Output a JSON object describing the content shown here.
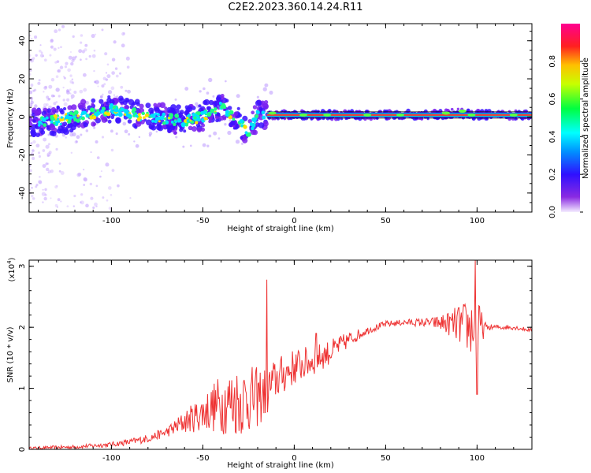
{
  "title": "C2E2.2023.360.14.24.R11",
  "chart_data": [
    {
      "type": "heatmap",
      "name": "spectrogram",
      "xlabel": "Height of straight line (km)",
      "ylabel": "Frequency (Hz)",
      "xlim": [
        -145,
        130
      ],
      "ylim": [
        -50,
        49
      ],
      "xticks": [
        "-100",
        "-50",
        "0",
        "50",
        "100"
      ],
      "yticks": [
        "-40",
        "-20",
        "0",
        "20",
        "40"
      ],
      "colorbar": {
        "label": "Normalized spectral amplitude",
        "ticks": [
          "0.0",
          "0.2",
          "0.4",
          "0.6",
          "0.8"
        ],
        "range": [
          0,
          1
        ],
        "colormap": "rainbow (white/purple → blue → cyan → green → yellow → red → magenta)"
      },
      "signal_track": {
        "description": "Frequency centroid of the signal versus height",
        "x": [
          -145,
          -130,
          -120,
          -110,
          -100,
          -90,
          -80,
          -70,
          -60,
          -50,
          -45,
          -40,
          -35,
          -30,
          -25,
          -20,
          -10,
          0,
          25,
          50,
          75,
          90,
          100,
          130
        ],
        "y": [
          -3,
          -2,
          0,
          2,
          4,
          2,
          0,
          -1,
          -2,
          0,
          3,
          5,
          2,
          -3,
          -8,
          1,
          1,
          1,
          1,
          1,
          1,
          2,
          1,
          1
        ]
      }
    },
    {
      "type": "line",
      "name": "snr",
      "xlabel": "Height of straight line (km)",
      "ylabel": "SNR (10 * v/v)",
      "y_multiplier": "(x10",
      "y_multiplier_exp": "4",
      "y_multiplier_close": ")",
      "xlim": [
        -145,
        130
      ],
      "ylim": [
        0,
        3.1
      ],
      "xticks": [
        "-100",
        "-50",
        "0",
        "50",
        "100"
      ],
      "yticks": [
        "0",
        "1",
        "2",
        "3"
      ],
      "series_color": "#ee3333",
      "trend": {
        "x": [
          -145,
          -120,
          -100,
          -90,
          -80,
          -70,
          -60,
          -50,
          -40,
          -30,
          -20,
          -15,
          -10,
          0,
          10,
          20,
          30,
          40,
          50,
          60,
          70,
          80,
          90,
          95,
          100,
          110,
          120,
          130
        ],
        "y": [
          0.02,
          0.04,
          0.08,
          0.12,
          0.18,
          0.28,
          0.45,
          0.6,
          0.75,
          0.8,
          0.85,
          0.95,
          1.15,
          1.35,
          1.45,
          1.6,
          1.8,
          1.95,
          2.05,
          2.08,
          2.08,
          2.07,
          2.05,
          2.0,
          2.0,
          2.0,
          2.0,
          1.95
        ]
      },
      "noise_amplitude": {
        "x": [
          -145,
          -100,
          -70,
          -50,
          -40,
          -30,
          -20,
          -10,
          0,
          20,
          40,
          60,
          75,
          85,
          95,
          100,
          105,
          130
        ],
        "y": [
          0.02,
          0.04,
          0.08,
          0.3,
          0.5,
          0.6,
          0.5,
          0.35,
          0.3,
          0.2,
          0.06,
          0.05,
          0.08,
          0.2,
          0.45,
          0.5,
          0.05,
          0.03
        ]
      },
      "spikes": [
        {
          "x": -15,
          "y": 2.78
        },
        {
          "x": 12,
          "y": 1.9
        },
        {
          "x": 99,
          "y": 3.1
        },
        {
          "x": 100,
          "y": 0.9
        }
      ]
    }
  ]
}
